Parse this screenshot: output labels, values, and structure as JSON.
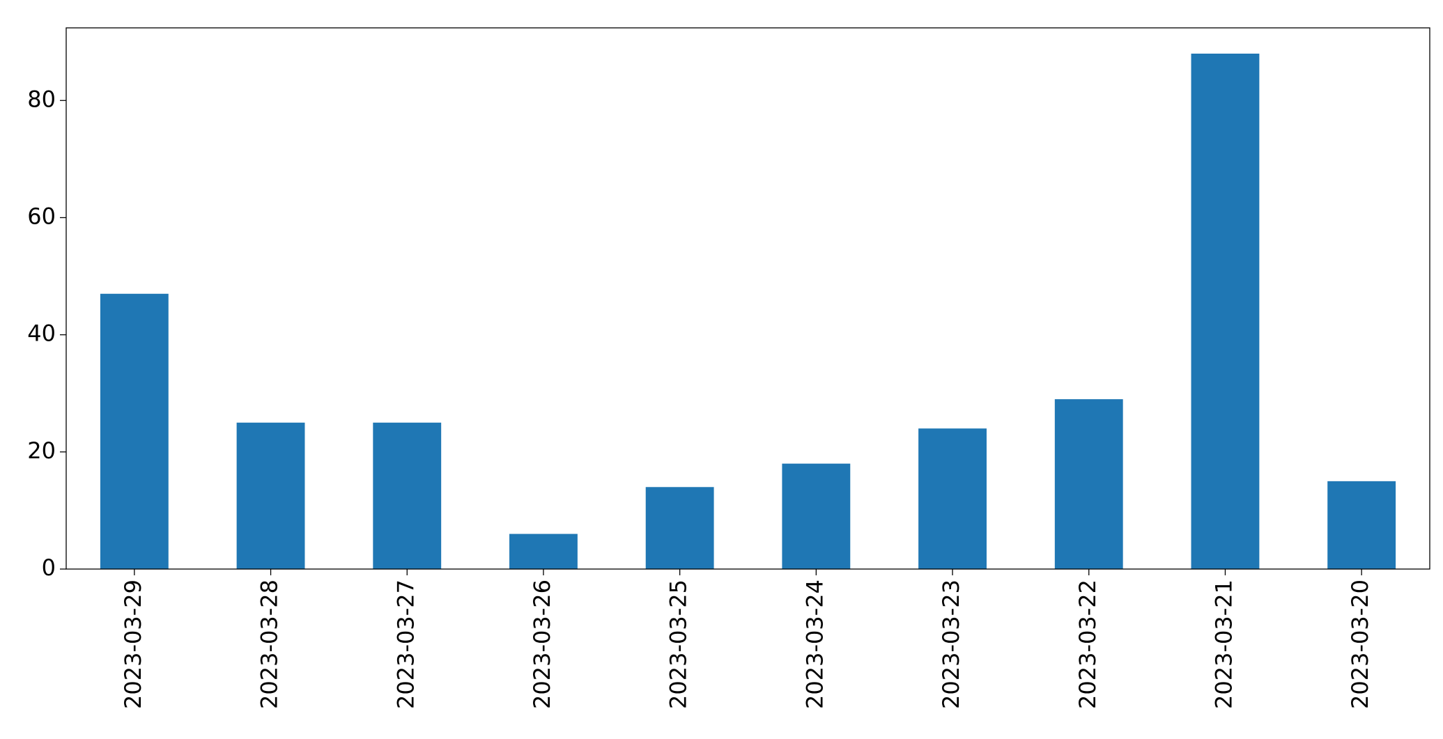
{
  "chart_data": {
    "type": "bar",
    "categories": [
      "2023-03-29",
      "2023-03-28",
      "2023-03-27",
      "2023-03-26",
      "2023-03-25",
      "2023-03-24",
      "2023-03-23",
      "2023-03-22",
      "2023-03-21",
      "2023-03-20"
    ],
    "values": [
      47,
      25,
      25,
      6,
      14,
      18,
      24,
      29,
      88,
      15
    ],
    "color": "#1f77b4",
    "ylim": [
      0,
      92.4
    ],
    "yticks": [
      0,
      20,
      40,
      60,
      80
    ],
    "grid": false
  }
}
